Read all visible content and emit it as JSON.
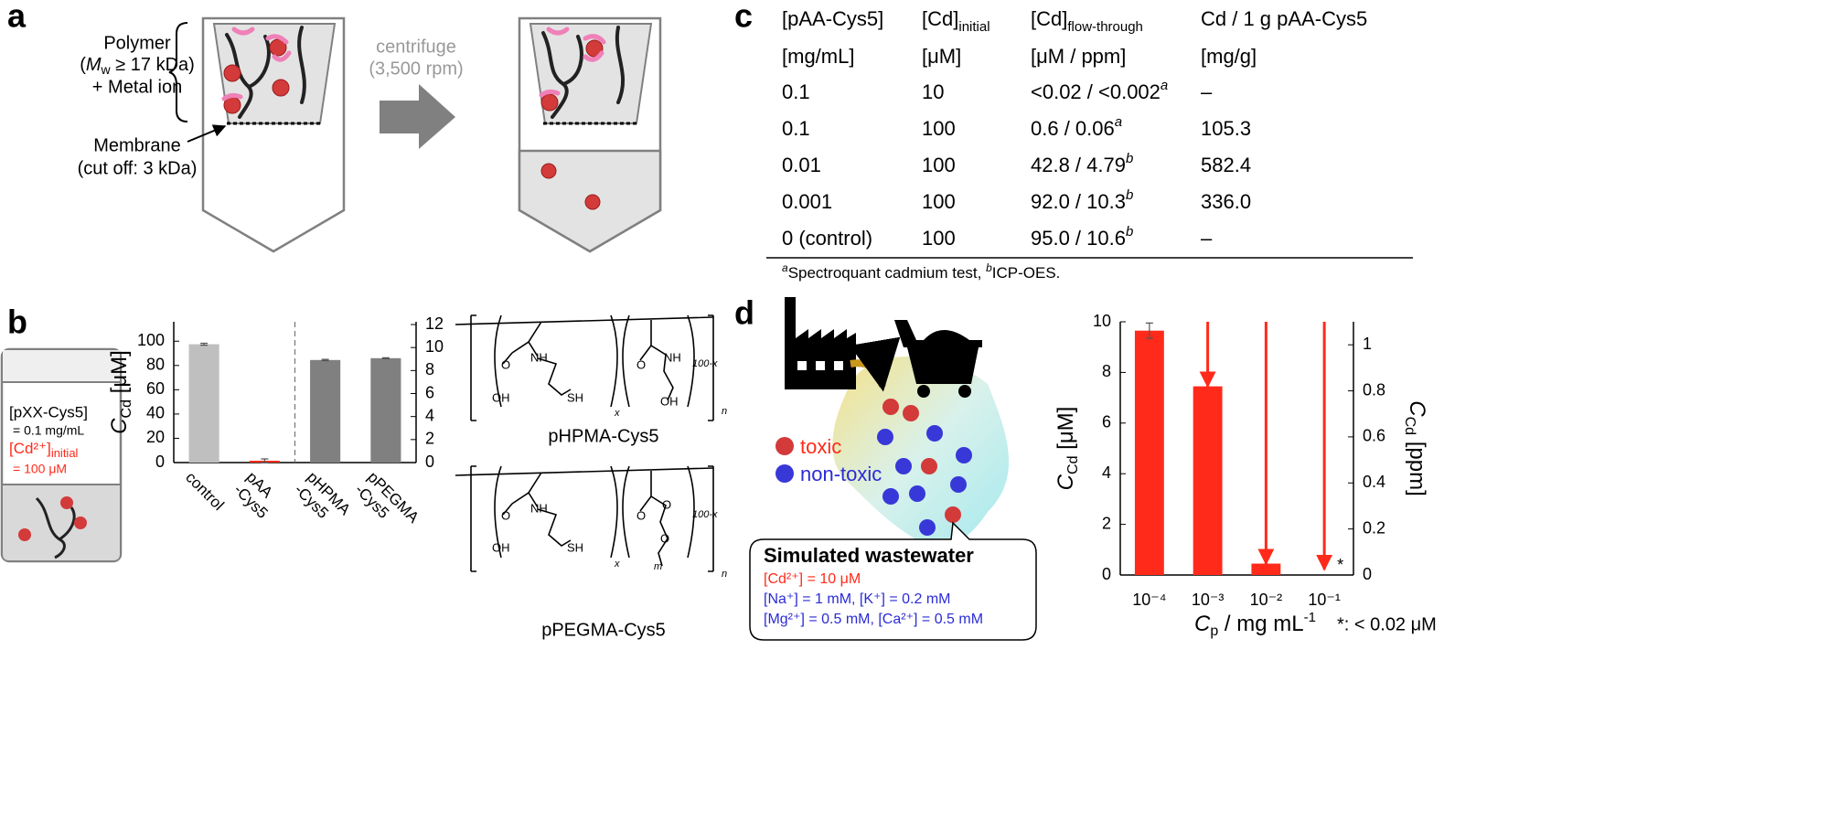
{
  "panel_labels": [
    "a",
    "b",
    "c",
    "d"
  ],
  "panel_a": {
    "polymer": "Polymer",
    "mw": [
      "(",
      "M",
      "w",
      " ≥ 17 kDa)"
    ],
    "metal": "+ Metal ion",
    "membrane": "Membrane",
    "cutoff": "(cut off: 3 kDa)",
    "step": "centrifuge",
    "speed": "(3,500 rpm)"
  },
  "panel_b": {
    "vial": [
      "[pXX-Cys5]",
      "= 0.1 mg/mL"
    ],
    "cd": [
      "[Cd²⁺]",
      "initial"
    ],
    "cd_value": "= 100 μM",
    "structures": [
      {
        "name": "pHPMA-Cys5",
        "atoms": [
          "O",
          "NH",
          "OH",
          "SH",
          "x",
          "O",
          "NH",
          "OH",
          "100-x",
          "n"
        ]
      },
      {
        "name": "pPEGMA-Cys5",
        "atoms": [
          "O",
          "NH",
          "OH",
          "SH",
          "x",
          "O",
          "O",
          "O",
          "m",
          "100-x",
          "n"
        ]
      }
    ]
  },
  "table": {
    "header": [
      "[pAA-Cys5]",
      [
        "[Cd]",
        "initial"
      ],
      [
        "[Cd]",
        "flow-through"
      ],
      "Cd / 1 g pAA-Cys5"
    ],
    "units": [
      "[mg/mL]",
      "[μM]",
      "[μM / ppm]",
      "[mg/g]"
    ],
    "rows": [
      [
        "0.1",
        "10",
        [
          "<0.02 / <0.002",
          "a"
        ],
        "–"
      ],
      [
        "0.1",
        "100",
        [
          "0.6 / 0.06",
          "a"
        ],
        "105.3"
      ],
      [
        "0.01",
        "100",
        [
          "42.8 / 4.79",
          "b"
        ],
        "582.4"
      ],
      [
        "0.001",
        "100",
        [
          "92.0 / 10.3",
          "b"
        ],
        "336.0"
      ],
      [
        "0 (control)",
        "100",
        [
          "95.0 / 10.6",
          "b"
        ],
        "–"
      ]
    ],
    "footnote": [
      "a",
      "Spectroquant cadmium test, ",
      "b",
      "ICP-OES."
    ]
  },
  "panel_d": {
    "legend": [
      "toxic",
      "non-toxic"
    ],
    "box_title": "Simulated wastewater",
    "box_lines": [
      "[Cd²⁺] = 10 μM",
      "[Na⁺] = 1 mM, [K⁺] = 0.2 mM",
      "[Mg²⁺] = 0.5 mM, [Ca²⁺] = 0.5 mM"
    ]
  },
  "chart_data": [
    {
      "type": "bar",
      "categories": [
        "control",
        "pAA\n-Cys5",
        "pHPMA\n-Cys5",
        "pPEGMA\n-Cys5"
      ],
      "values": [
        97.5,
        1.5,
        84.5,
        86
      ],
      "errors": [
        0.8,
        1.5,
        0.5,
        0.4
      ],
      "colors": [
        "#bfbfbf",
        "#ff2a1a",
        "#808080",
        "#808080"
      ],
      "y_label": [
        "C",
        "Cd",
        " [μM]"
      ],
      "ylim": [
        0,
        116
      ],
      "yticks": [
        0,
        20,
        40,
        60,
        80,
        100
      ],
      "y2lim": [
        0,
        12.24
      ],
      "y2ticks": [
        0,
        2,
        4,
        6,
        8,
        10,
        12
      ]
    },
    {
      "type": "bar",
      "categories": [
        "10⁻⁴",
        "10⁻³",
        "10⁻²",
        "10⁻¹"
      ],
      "values": [
        9.65,
        7.45,
        0.45,
        null
      ],
      "errors": [
        0.3,
        null,
        null,
        null
      ],
      "color": "#ff2a1a",
      "annotation": "*",
      "note": "*: < 0.02 μM",
      "y_label": [
        "C",
        "Cd",
        " [μM]"
      ],
      "y2_label": [
        "C",
        "Cd",
        " [ppm]"
      ],
      "x_label": [
        "C",
        "p",
        " / mg mL",
        "-1"
      ],
      "ylim": [
        0,
        10
      ],
      "yticks": [
        0,
        2,
        4,
        6,
        8,
        10
      ],
      "y2lim": [
        0,
        1.1
      ],
      "y2ticks": [
        0,
        0.2,
        0.4,
        0.6,
        0.8,
        1
      ]
    }
  ]
}
